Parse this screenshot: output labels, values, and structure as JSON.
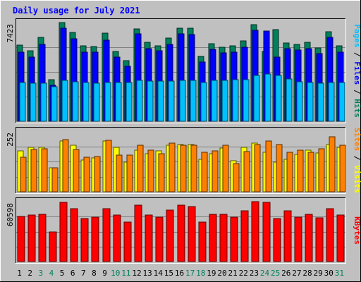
{
  "chart_data": {
    "type": "bar",
    "title": "Daily usage for July 2021",
    "days": [
      "1",
      "2",
      "3",
      "4",
      "5",
      "6",
      "7",
      "8",
      "9",
      "10",
      "11",
      "12",
      "13",
      "14",
      "15",
      "16",
      "17",
      "18",
      "19",
      "20",
      "21",
      "22",
      "23",
      "24",
      "25",
      "26",
      "27",
      "28",
      "29",
      "30",
      "31"
    ],
    "weekend_days": [
      "3",
      "4",
      "10",
      "11",
      "17",
      "18",
      "24",
      "25",
      "31"
    ],
    "panels": [
      {
        "id": "top",
        "ymax_label": "7423",
        "ymax": 7423,
        "right_label": [
          "Pages",
          "Files",
          "Hits"
        ],
        "series": [
          {
            "name": "Hits",
            "color": "#00805c",
            "values": [
              5740,
              5300,
              6320,
              3130,
              7400,
              6660,
              5680,
              5600,
              6630,
              5240,
              4580,
              6970,
              5920,
              5690,
              6240,
              6990,
              6990,
              4880,
              5840,
              5560,
              5680,
              6030,
              7260,
              5250,
              6900,
              5890,
              5790,
              5920,
              5540,
              6730,
              5680
            ]
          },
          {
            "name": "Files",
            "color": "#0000ff",
            "values": [
              5210,
              4800,
              5800,
              2700,
              7000,
              6210,
              5220,
              5220,
              6110,
              4830,
              4140,
              6580,
              5450,
              5300,
              5790,
              6560,
              6540,
              4470,
              5390,
              5150,
              5180,
              5580,
              6860,
              6800,
              4820,
              5480,
              5340,
              5450,
              5080,
              6330,
              5210
            ]
          },
          {
            "name": "Pages",
            "color": "#00c0ff",
            "values": [
              2900,
              2870,
              2840,
              2590,
              3080,
              2990,
              2940,
              2880,
              2940,
              2900,
              2940,
              3050,
              3020,
              3040,
              3010,
              3060,
              3050,
              2940,
              3050,
              3100,
              3130,
              3150,
              3460,
              3530,
              3470,
              3190,
              2970,
              2930,
              2870,
              2910,
              2910
            ]
          }
        ]
      },
      {
        "id": "middle",
        "ymax_label": "252",
        "ymax": 252,
        "right_label": [
          "Sites",
          "Visits"
        ],
        "series": [
          {
            "name": "Visits",
            "color": "#ffff00",
            "values": [
              170,
              186,
              186,
              101,
              210,
              193,
              132,
              142,
              211,
              185,
              122,
              172,
              159,
              169,
              192,
              197,
              196,
              135,
              159,
              183,
              130,
              185,
              201,
              165,
              124,
              136,
              154,
              172,
              161,
              195,
              186
            ]
          },
          {
            "name": "Sites",
            "color": "#ff8000",
            "values": [
              145,
              177,
              179,
              100,
              218,
              177,
              143,
              146,
              215,
              151,
              153,
              192,
              172,
              158,
              202,
              194,
              193,
              165,
              169,
              193,
              118,
              167,
              197,
              212,
              195,
              164,
              172,
              165,
              178,
              230,
              192
            ]
          }
        ]
      },
      {
        "id": "bottom",
        "ymax_label": "60598",
        "ymax": 60598,
        "right_label": [
          "KBytes"
        ],
        "series": [
          {
            "name": "KBytes",
            "color": "#ff0000",
            "values": [
              45600,
              47200,
              48000,
              29800,
              60000,
              53800,
              43300,
              44700,
              53400,
              46800,
              39700,
              56900,
              47400,
              44800,
              52200,
              56900,
              55900,
              39700,
              47600,
              48000,
              45000,
              51300,
              60598,
              59600,
              43700,
              51500,
              44800,
              48000,
              44200,
              53500,
              47400
            ]
          }
        ]
      }
    ],
    "colors": {
      "title": "#0000ff",
      "panel_bg": "#c0c0c0",
      "grid": "#808080",
      "weekday_label": "#000000",
      "weekend_label": "#00805c",
      "label_sep": "#000000"
    }
  }
}
